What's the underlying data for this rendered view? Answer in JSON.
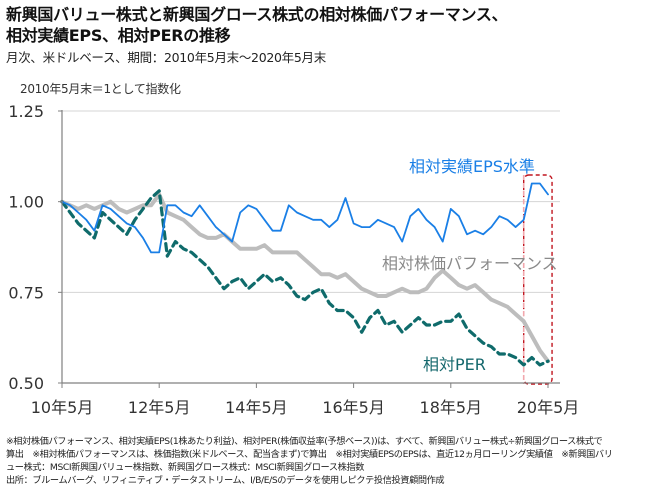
{
  "header": {
    "title_line1": "新興国バリュー株式と新興国グロース株式の相対株価パフォーマンス、",
    "title_line2": "相対実績EPS、相対PERの推移",
    "subtitle": "月次、米ドルベース、期間：2010年5月末～2020年5月末"
  },
  "chart_data": {
    "type": "line",
    "title": "新興国バリュー株式と新興国グロース株式の相対株価パフォーマンス、相対実績EPS、相対PERの推移",
    "note": "2010年5月末＝1として指数化",
    "xlabel": "",
    "ylabel": "",
    "ylim": [
      0.5,
      1.25
    ],
    "yticks": [
      "1.25",
      "1.00",
      "0.75",
      "0.50"
    ],
    "ytick_values": [
      1.25,
      1.0,
      0.75,
      0.5
    ],
    "xticks": [
      "10年5月",
      "12年5月",
      "14年5月",
      "16年5月",
      "18年5月",
      "20年5月"
    ],
    "xtick_months": [
      0,
      24,
      48,
      72,
      96,
      120
    ],
    "grid": "horizontal",
    "x_unit": "months since 2010-05 (2-month step)",
    "x": [
      0,
      2,
      4,
      6,
      8,
      10,
      12,
      14,
      16,
      18,
      20,
      22,
      24,
      26,
      28,
      30,
      32,
      34,
      36,
      38,
      40,
      42,
      44,
      46,
      48,
      50,
      52,
      54,
      56,
      58,
      60,
      62,
      64,
      66,
      68,
      70,
      72,
      74,
      76,
      78,
      80,
      82,
      84,
      86,
      88,
      90,
      92,
      94,
      96,
      98,
      100,
      102,
      104,
      106,
      108,
      110,
      112,
      114,
      116,
      118,
      120
    ],
    "series": [
      {
        "name": "相対実績EPS水準",
        "color": "#1a7fe6",
        "style": "solid",
        "values": [
          1.0,
          0.99,
          0.97,
          0.95,
          0.92,
          0.99,
          0.98,
          0.96,
          0.94,
          0.93,
          0.9,
          0.86,
          0.86,
          0.99,
          0.99,
          0.97,
          0.96,
          0.99,
          0.96,
          0.93,
          0.91,
          0.89,
          0.97,
          0.99,
          0.98,
          0.95,
          0.92,
          0.92,
          0.99,
          0.97,
          0.96,
          0.95,
          0.95,
          0.93,
          0.95,
          1.01,
          0.94,
          0.93,
          0.93,
          0.95,
          0.94,
          0.93,
          0.89,
          0.96,
          0.98,
          0.95,
          0.93,
          0.89,
          0.98,
          0.96,
          0.91,
          0.92,
          0.91,
          0.93,
          0.96,
          0.95,
          0.93,
          0.95,
          1.05,
          1.05,
          1.02
        ]
      },
      {
        "name": "相対株価パフォーマンス",
        "color": "#bdbdbd",
        "style": "solid-thick",
        "values": [
          1.0,
          0.99,
          0.98,
          0.99,
          0.98,
          0.99,
          1.0,
          0.98,
          0.97,
          0.98,
          0.99,
          0.99,
          1.02,
          0.97,
          0.96,
          0.95,
          0.93,
          0.91,
          0.9,
          0.9,
          0.91,
          0.89,
          0.87,
          0.87,
          0.87,
          0.88,
          0.86,
          0.86,
          0.86,
          0.86,
          0.84,
          0.82,
          0.8,
          0.8,
          0.79,
          0.8,
          0.78,
          0.76,
          0.75,
          0.74,
          0.74,
          0.75,
          0.76,
          0.75,
          0.75,
          0.76,
          0.79,
          0.81,
          0.79,
          0.77,
          0.76,
          0.77,
          0.75,
          0.73,
          0.72,
          0.71,
          0.69,
          0.67,
          0.63,
          0.59,
          0.56
        ]
      },
      {
        "name": "相対PER",
        "color": "#0f6b6b",
        "style": "dashed",
        "values": [
          1.0,
          0.97,
          0.94,
          0.92,
          0.9,
          0.97,
          0.95,
          0.93,
          0.91,
          0.95,
          0.98,
          1.01,
          1.03,
          0.85,
          0.89,
          0.87,
          0.86,
          0.84,
          0.82,
          0.79,
          0.76,
          0.78,
          0.79,
          0.76,
          0.78,
          0.8,
          0.78,
          0.79,
          0.77,
          0.74,
          0.73,
          0.75,
          0.76,
          0.72,
          0.7,
          0.7,
          0.68,
          0.64,
          0.68,
          0.7,
          0.66,
          0.67,
          0.64,
          0.66,
          0.68,
          0.66,
          0.66,
          0.67,
          0.67,
          0.69,
          0.65,
          0.63,
          0.61,
          0.6,
          0.58,
          0.58,
          0.57,
          0.55,
          0.57,
          0.55,
          0.56
        ]
      }
    ],
    "labels": {
      "eps": "相対実績EPS水準",
      "performance": "相対株価パフォーマンス",
      "per": "相対PER"
    },
    "highlight": {
      "description": "直近期間の強調枠",
      "from_month": 114,
      "to_month": 121,
      "color": "#c0151f"
    }
  },
  "footnotes": [
    "※相対株価パフォーマンス、相対実績EPS(1株あたり利益)、相対PER(株価収益率(予想ベース))は、すべて、新興国バリュー株式÷新興国グロース株式で",
    "算出　※相対株価パフォーマンスは、株価指数(米ドルベース、配当含まず)で算出　※相対実績EPSのEPSは、直近12ヵ月ローリング実績値　※新興国バリ",
    "ュー株式：MSCI新興国バリュー株指数、新興国グロース株式：MSCI新興国グロース株指数",
    "出所：ブルームバーグ、リフィニティブ・データストリーム、I/B/E/Sのデータを使用しピクテ投信投資顧問作成"
  ]
}
